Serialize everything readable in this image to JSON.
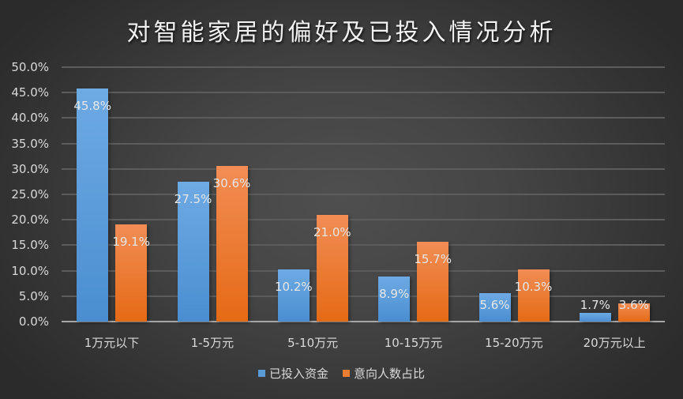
{
  "title": "对智能家居的偏好及已投入情况分析",
  "chart_data": {
    "type": "bar",
    "title": "对智能家居的偏好及已投入情况分析",
    "xlabel": "",
    "ylabel": "",
    "ylim": [
      0,
      50
    ],
    "yticks": [
      "0.0%",
      "5.0%",
      "10.0%",
      "15.0%",
      "20.0%",
      "25.0%",
      "30.0%",
      "35.0%",
      "40.0%",
      "45.0%",
      "50.0%"
    ],
    "grid": true,
    "legend_position": "bottom",
    "categories": [
      "1万元以下",
      "1-5万元",
      "5-10万元",
      "10-15万元",
      "15-20万元",
      "20万元以上"
    ],
    "series": [
      {
        "name": "已投入资金",
        "color": "#5b9bd5",
        "values": [
          45.8,
          27.5,
          10.2,
          8.9,
          5.6,
          1.7
        ],
        "labels": [
          "45.8%",
          "27.5%",
          "10.2%",
          "8.9%",
          "5.6%",
          "1.7%"
        ]
      },
      {
        "name": "意向人数占比",
        "color": "#ed7d31",
        "values": [
          19.1,
          30.6,
          21.0,
          15.7,
          10.3,
          3.6
        ],
        "labels": [
          "19.1%",
          "30.6%",
          "21.0%",
          "15.7%",
          "10.3%",
          "3.6%"
        ]
      }
    ]
  },
  "legend": [
    {
      "label": "已投入资金",
      "color": "#5b9bd5"
    },
    {
      "label": "意向人数占比",
      "color": "#ed7d31"
    }
  ]
}
